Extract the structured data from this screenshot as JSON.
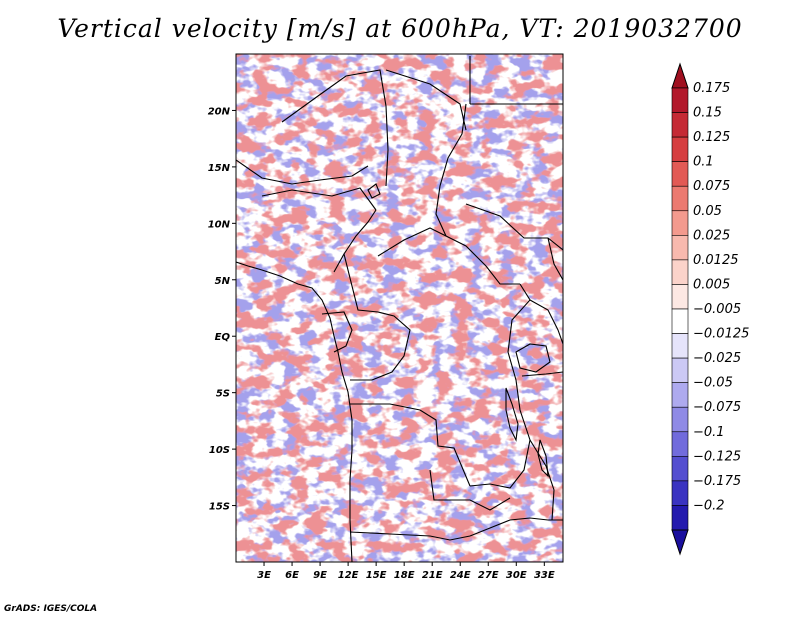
{
  "title": "Vertical velocity [m/s] at 600hPa, VT: 2019032700",
  "credit": "GrADS: IGES/COLA",
  "map": {
    "lon_range": [
      0,
      35
    ],
    "lat_range": [
      -20,
      25
    ],
    "lat_ticks": [
      {
        "value": 20,
        "label": "20N"
      },
      {
        "value": 15,
        "label": "15N"
      },
      {
        "value": 10,
        "label": "10N"
      },
      {
        "value": 5,
        "label": "5N"
      },
      {
        "value": 0,
        "label": "EQ"
      },
      {
        "value": -5,
        "label": "5S"
      },
      {
        "value": -10,
        "label": "10S"
      },
      {
        "value": -15,
        "label": "15S"
      }
    ],
    "lon_ticks": [
      {
        "value": 3,
        "label": "3E"
      },
      {
        "value": 6,
        "label": "6E"
      },
      {
        "value": 9,
        "label": "9E"
      },
      {
        "value": 12,
        "label": "12E"
      },
      {
        "value": 15,
        "label": "15E"
      },
      {
        "value": 18,
        "label": "18E"
      },
      {
        "value": 21,
        "label": "21E"
      },
      {
        "value": 24,
        "label": "24E"
      },
      {
        "value": 27,
        "label": "27E"
      },
      {
        "value": 30,
        "label": "30E"
      },
      {
        "value": 33,
        "label": "33E"
      }
    ]
  },
  "colorbar": {
    "levels": [
      {
        "label": "0.175",
        "color": "#b2182b"
      },
      {
        "label": "0.15",
        "color": "#c52a35"
      },
      {
        "label": "0.125",
        "color": "#d63e40"
      },
      {
        "label": "0.1",
        "color": "#e25a55"
      },
      {
        "label": "0.075",
        "color": "#ec7a70"
      },
      {
        "label": "0.05",
        "color": "#f39a8e"
      },
      {
        "label": "0.025",
        "color": "#f8b9ae"
      },
      {
        "label": "0.0125",
        "color": "#fbd3ca"
      },
      {
        "label": "0.005",
        "color": "#fde8e3"
      },
      {
        "label": "−0.005",
        "color": "#ffffff"
      },
      {
        "label": "−0.0125",
        "color": "#e6e4fb"
      },
      {
        "label": "−0.025",
        "color": "#ccc9f5"
      },
      {
        "label": "−0.05",
        "color": "#aeaaef"
      },
      {
        "label": "−0.075",
        "color": "#8f8ae6"
      },
      {
        "label": "−0.1",
        "color": "#716bdc"
      },
      {
        "label": "−0.125",
        "color": "#544ed0"
      },
      {
        "label": "−0.175",
        "color": "#3a33c1"
      },
      {
        "label": "−0.2",
        "color": "#241aae"
      }
    ],
    "top_color": "#a01020",
    "bottom_color": "#1a0f9e"
  },
  "colors": {
    "positive": "#d63e40",
    "negative": "#544ed0",
    "border": "#000000"
  }
}
